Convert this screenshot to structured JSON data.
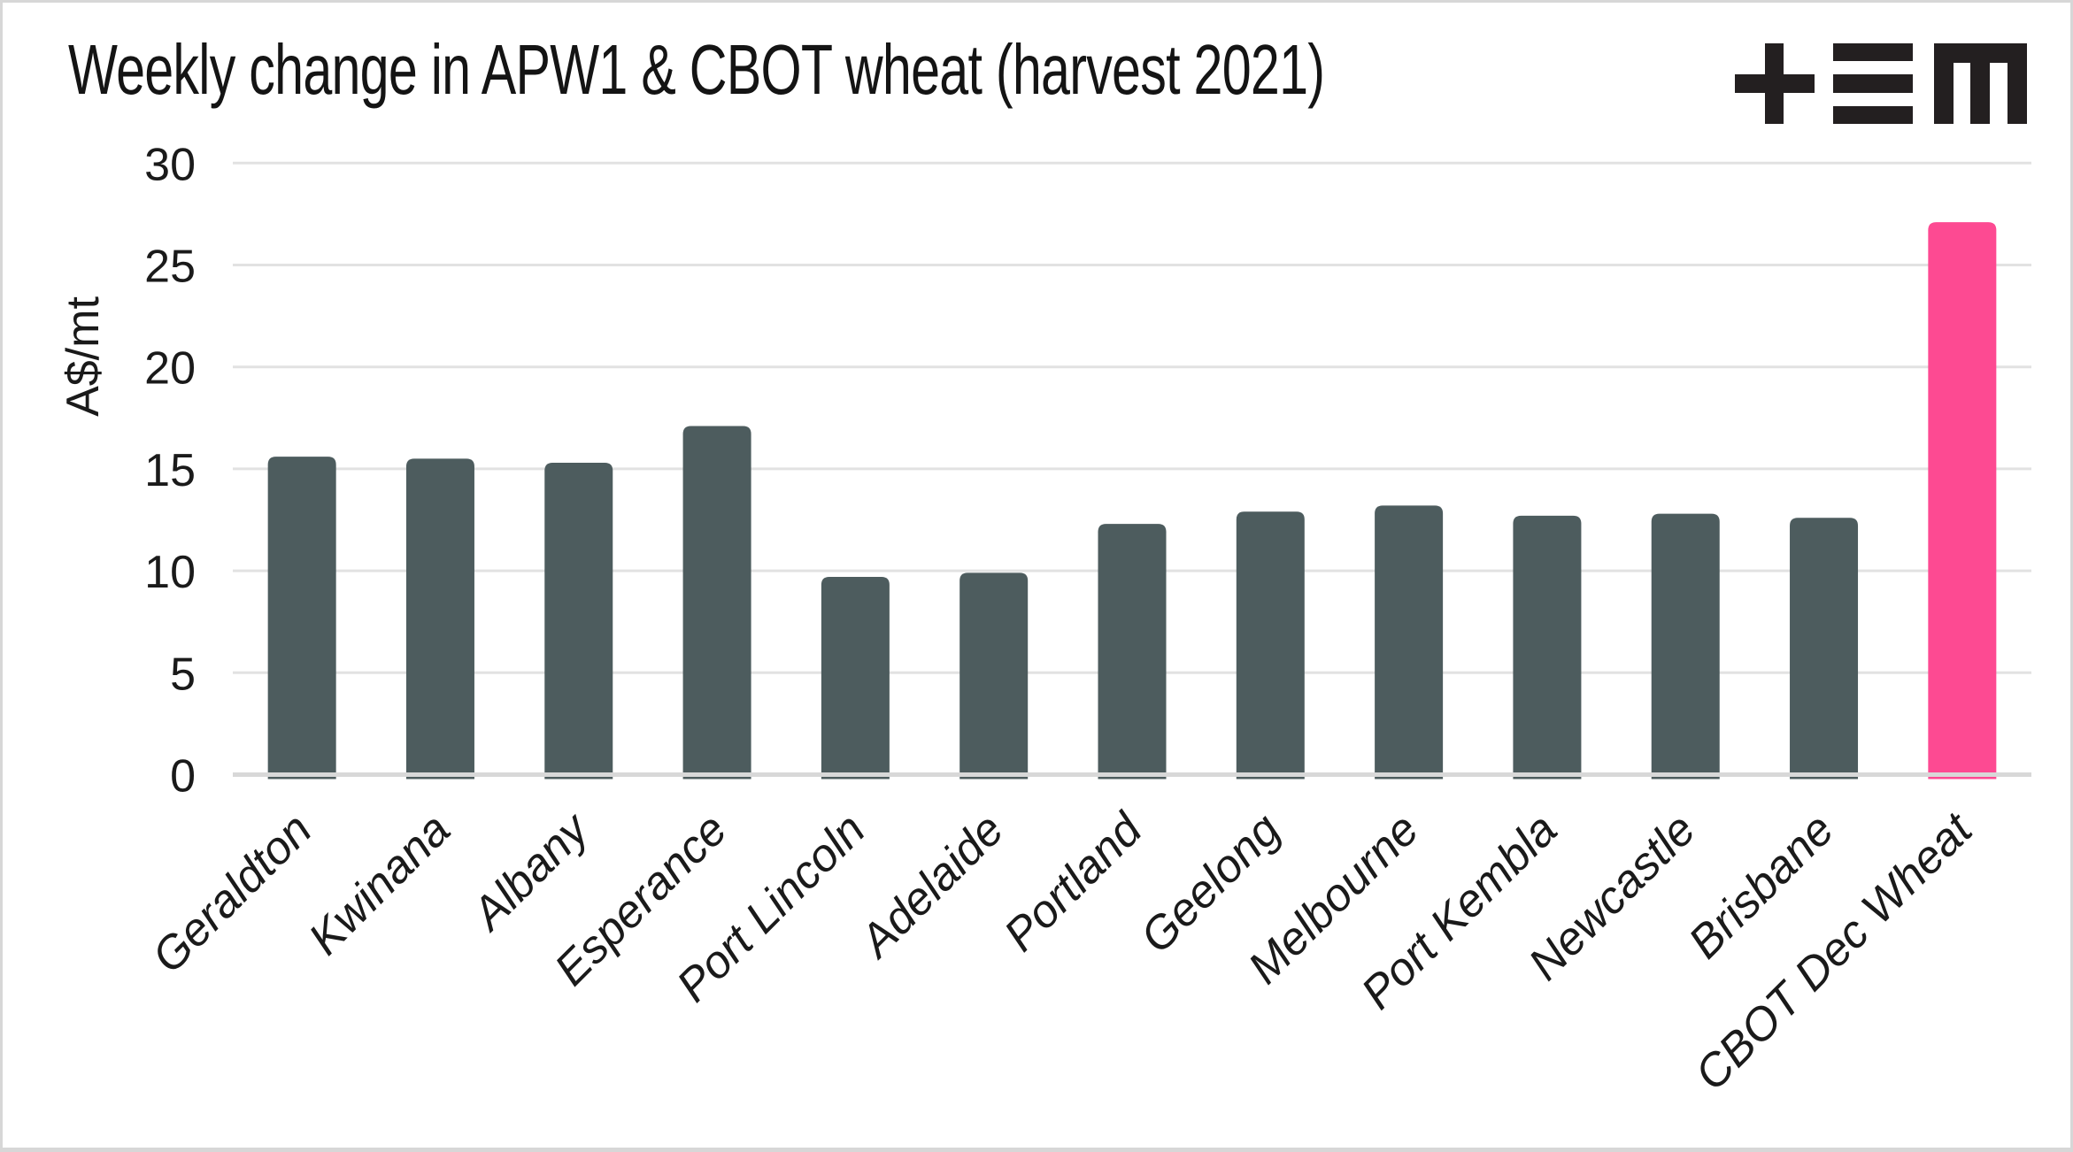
{
  "branding": {
    "logo_icon": "tem-plus-equals-m-logo"
  },
  "chart_data": {
    "type": "bar",
    "title": "Weekly change in APW1 & CBOT wheat (harvest 2021)",
    "ylabel": "A$/mt",
    "xlabel": "",
    "ylim": [
      0,
      30
    ],
    "yticks": [
      0,
      5,
      10,
      15,
      20,
      25,
      30
    ],
    "grid": true,
    "legend_position": "none",
    "x_tick_rotation_deg": 45,
    "categories": [
      "Geraldton",
      "Kwinana",
      "Albany",
      "Esperance",
      "Port Lincoln",
      "Adelaide",
      "Portland",
      "Geelong",
      "Melbourne",
      "Port Kembla",
      "Newcastle",
      "Brisbane",
      "CBOT Dec Wheat"
    ],
    "values": [
      15.6,
      15.5,
      15.3,
      17.1,
      9.7,
      9.9,
      12.3,
      12.9,
      13.2,
      12.7,
      12.8,
      12.6,
      27.1
    ],
    "highlight_index": 12,
    "colors": {
      "bar_default": "#4d5c5e",
      "bar_highlight": "#fd4a92",
      "gridline": "#e2e2e2",
      "baseline": "#d8d8d8",
      "text": "#1a1a1a",
      "logo": "#231f20"
    }
  }
}
